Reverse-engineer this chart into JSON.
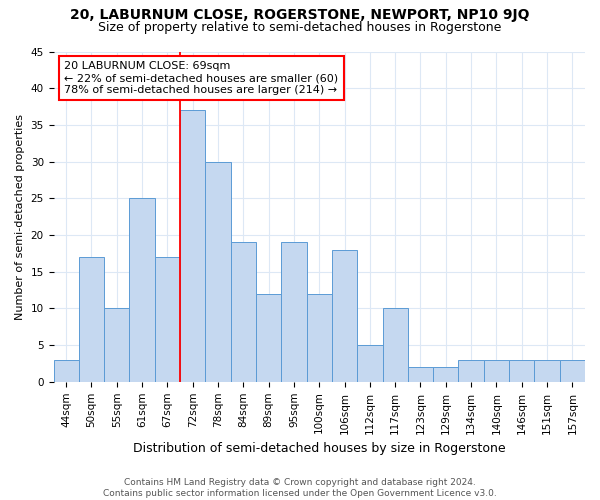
{
  "title": "20, LABURNUM CLOSE, ROGERSTONE, NEWPORT, NP10 9JQ",
  "subtitle": "Size of property relative to semi-detached houses in Rogerstone",
  "xlabel": "Distribution of semi-detached houses by size in Rogerstone",
  "ylabel": "Number of semi-detached properties",
  "footnote": "Contains HM Land Registry data © Crown copyright and database right 2024.\nContains public sector information licensed under the Open Government Licence v3.0.",
  "categories": [
    "44sqm",
    "50sqm",
    "55sqm",
    "61sqm",
    "67sqm",
    "72sqm",
    "78sqm",
    "84sqm",
    "89sqm",
    "95sqm",
    "100sqm",
    "106sqm",
    "112sqm",
    "117sqm",
    "123sqm",
    "129sqm",
    "134sqm",
    "140sqm",
    "146sqm",
    "151sqm",
    "157sqm"
  ],
  "values": [
    3,
    17,
    10,
    25,
    17,
    37,
    30,
    19,
    12,
    19,
    12,
    18,
    5,
    10,
    2,
    2,
    3,
    3,
    3,
    3,
    3
  ],
  "bar_color": "#c5d8f0",
  "bar_edge_color": "#5b9bd5",
  "property_bin_index": 4,
  "annotation_text": "20 LABURNUM CLOSE: 69sqm\n← 22% of semi-detached houses are smaller (60)\n78% of semi-detached houses are larger (214) →",
  "annotation_box_color": "white",
  "annotation_box_edge_color": "red",
  "vline_color": "red",
  "ylim": [
    0,
    45
  ],
  "yticks": [
    0,
    5,
    10,
    15,
    20,
    25,
    30,
    35,
    40,
    45
  ],
  "background_color": "white",
  "grid_color": "#dde8f5",
  "title_fontsize": 10,
  "subtitle_fontsize": 9,
  "xlabel_fontsize": 9,
  "ylabel_fontsize": 8,
  "tick_fontsize": 7.5,
  "annotation_fontsize": 8,
  "footnote_fontsize": 6.5
}
